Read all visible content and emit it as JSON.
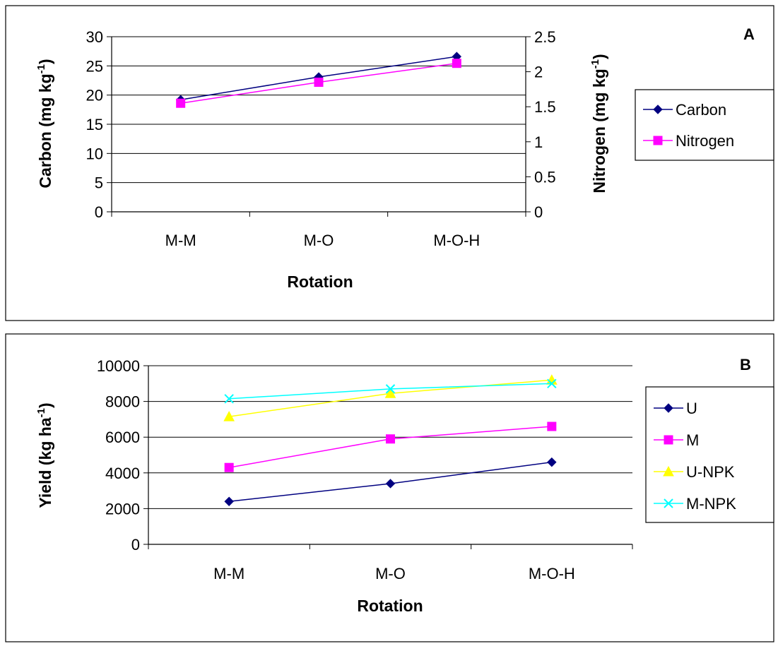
{
  "chart_data": [
    {
      "type": "line",
      "panel_label": "A",
      "categories": [
        "M-M",
        "M-O",
        "M-O-H"
      ],
      "xlabel": "Rotation",
      "ylabel": "Carbon (mg kg",
      "ylabel_sup": "-1",
      "ylabel_close": ")",
      "y2label": "Nitrogen (mg kg",
      "y2label_sup": "-1",
      "y2label_close": ")",
      "ylim": [
        0,
        30
      ],
      "y2lim": [
        0,
        2.5
      ],
      "yticks": [
        "0",
        "5",
        "10",
        "15",
        "20",
        "25",
        "30"
      ],
      "y2ticks": [
        "0",
        "0.5",
        "1",
        "1.5",
        "2",
        "2.5"
      ],
      "grid": true,
      "legend_position": "right",
      "series": [
        {
          "name": "Carbon",
          "axis": "left",
          "values": [
            19.2,
            23.1,
            26.6
          ],
          "color": "#000080",
          "marker": "diamond"
        },
        {
          "name": "Nitrogen",
          "axis": "right",
          "values": [
            1.55,
            1.85,
            2.12
          ],
          "color": "#FF00FF",
          "marker": "square"
        }
      ]
    },
    {
      "type": "line",
      "panel_label": "B",
      "categories": [
        "M-M",
        "M-O",
        "M-O-H"
      ],
      "xlabel": "Rotation",
      "ylabel": "Yield (kg ha",
      "ylabel_sup": "-1",
      "ylabel_close": ")",
      "ylim": [
        0,
        10000
      ],
      "yticks": [
        "0",
        "2000",
        "4000",
        "6000",
        "8000",
        "10000"
      ],
      "grid": true,
      "legend_position": "right",
      "series": [
        {
          "name": "U",
          "values": [
            2400,
            3400,
            4600
          ],
          "color": "#000080",
          "marker": "diamond"
        },
        {
          "name": "M",
          "values": [
            4300,
            5900,
            6600
          ],
          "color": "#FF00FF",
          "marker": "square"
        },
        {
          "name": "U-NPK",
          "values": [
            7150,
            8450,
            9200
          ],
          "color": "#FFFF00",
          "marker": "triangle"
        },
        {
          "name": "M-NPK",
          "values": [
            8150,
            8700,
            9000
          ],
          "color": "#00FFFF",
          "marker": "x"
        }
      ]
    }
  ]
}
